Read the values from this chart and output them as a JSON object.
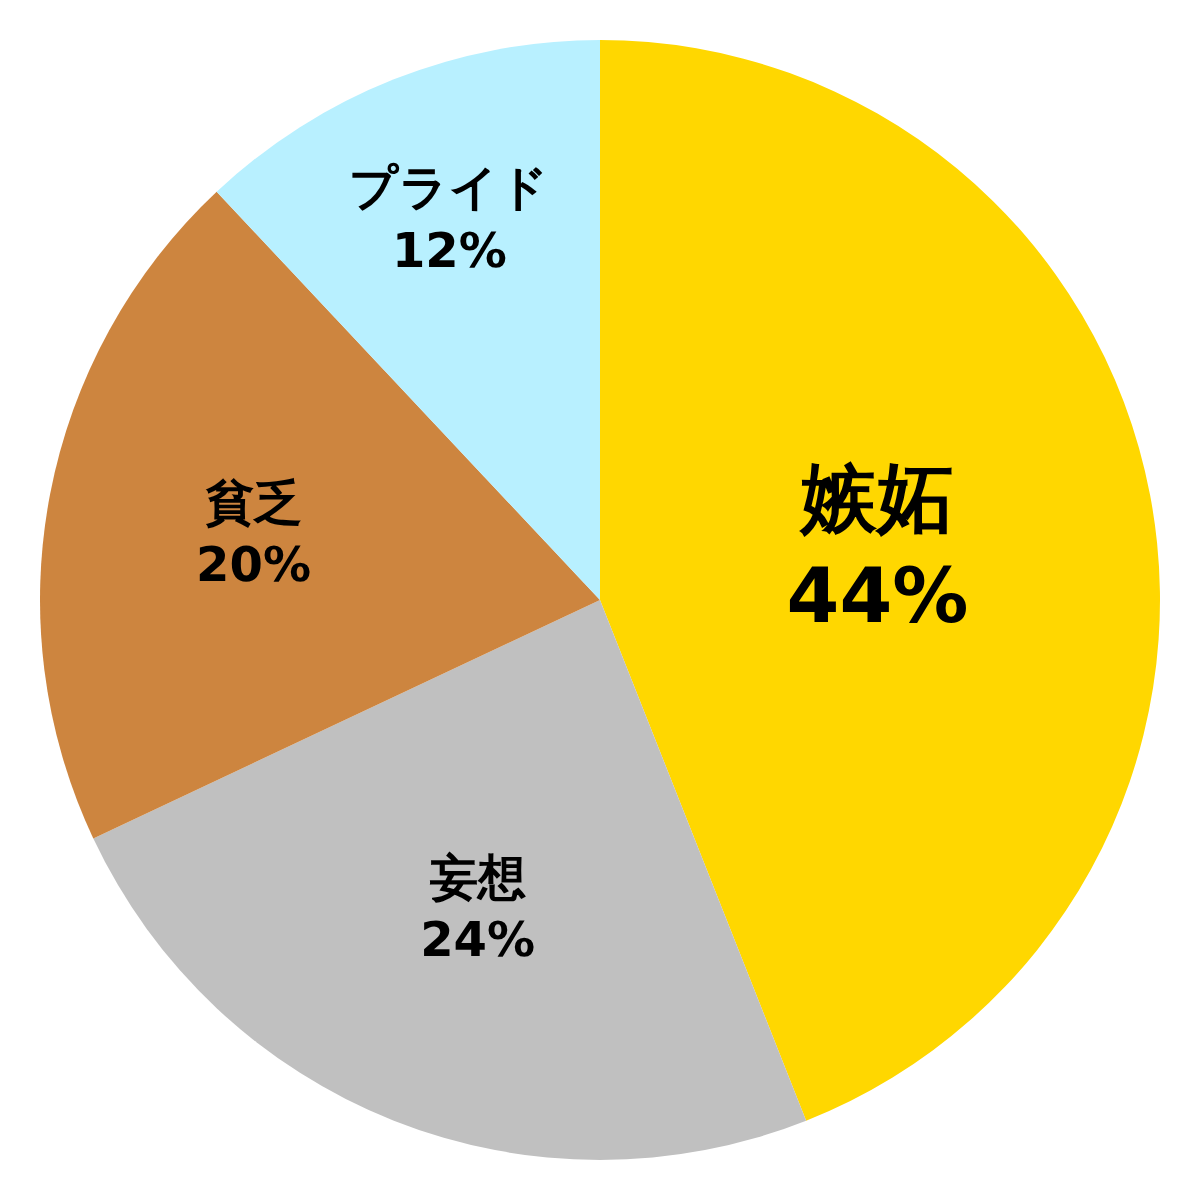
{
  "chart_data": {
    "type": "pie",
    "categories": [
      "嫉妬",
      "妄想",
      "貧乏",
      "プライド"
    ],
    "values": [
      44,
      24,
      20,
      12
    ],
    "value_labels": [
      "44%",
      "24%",
      "20%",
      "12%"
    ],
    "colors": [
      "#ffd700",
      "#c0c0c0",
      "#cd853f",
      "#b8f0ff"
    ],
    "legend": false
  }
}
